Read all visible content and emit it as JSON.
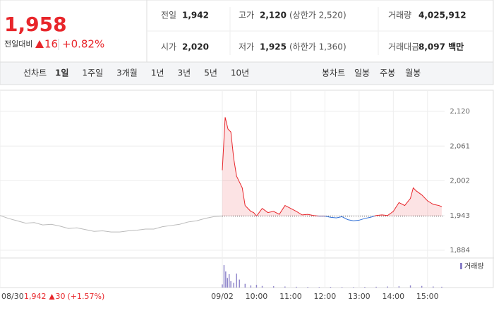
{
  "header": {
    "price": "1,958",
    "change_label": "전일대비",
    "change": "16",
    "change_pct": "+0.82%",
    "stats": [
      [
        {
          "label": "전일",
          "value": "1,942"
        },
        {
          "label": "고가",
          "value": "2,120",
          "note": "(상한가 2,520)"
        },
        {
          "label": "거래량",
          "value": "4,025,912"
        }
      ],
      [
        {
          "label": "시가",
          "value": "2,020"
        },
        {
          "label": "저가",
          "value": "1,925",
          "note": "(하한가 1,360)"
        },
        {
          "label": "거래대금",
          "value": "8,097 백만"
        }
      ]
    ]
  },
  "tabs": {
    "line_label": "선차트",
    "line": [
      "1일",
      "1주일",
      "3개월",
      "1년",
      "3년",
      "5년",
      "10년"
    ],
    "candle_label": "봉차트",
    "candle": [
      "일봉",
      "주봉",
      "월봉"
    ]
  },
  "chart_data": {
    "type": "line",
    "baseline": 1942,
    "color_up": "#e8262b",
    "color_down": "#2f6fd6",
    "grid": true,
    "xlim": [
      0,
      780
    ],
    "ylim": [
      1872,
      2156
    ],
    "xticks": [
      {
        "value": 0,
        "label": "08/30"
      },
      {
        "value": 390,
        "label": "09/02"
      },
      {
        "value": 450,
        "label": "10:00"
      },
      {
        "value": 510,
        "label": "11:00"
      },
      {
        "value": 570,
        "label": "12:00"
      },
      {
        "value": 630,
        "label": "13:00"
      },
      {
        "value": 690,
        "label": "14:00"
      },
      {
        "value": 750,
        "label": "15:00"
      }
    ],
    "yticks": [
      {
        "value": 1884,
        "label": "1,884"
      },
      {
        "value": 1943,
        "label": "1,943"
      },
      {
        "value": 2002,
        "label": "2,002"
      },
      {
        "value": 2061,
        "label": "2,061"
      },
      {
        "value": 2120,
        "label": "2,120"
      }
    ],
    "series": [
      {
        "color": "#bbbbbb",
        "x": [
          0,
          15,
          30,
          45,
          60,
          75,
          90,
          105,
          120,
          135,
          150,
          165,
          180,
          195,
          210,
          225,
          240,
          255,
          270,
          285,
          300,
          315,
          330,
          345,
          360,
          375,
          390
        ],
        "values": [
          1943,
          1938,
          1934,
          1930,
          1931,
          1927,
          1928,
          1925,
          1921,
          1922,
          1919,
          1916,
          1917,
          1915,
          1915,
          1917,
          1918,
          1920,
          1920,
          1924,
          1926,
          1928,
          1932,
          1934,
          1938,
          1941,
          1942
        ]
      },
      {
        "x": [
          390,
          395,
          400,
          405,
          410,
          415,
          420,
          425,
          430,
          435,
          440,
          445,
          450,
          460,
          470,
          480,
          490,
          500,
          510,
          520,
          530,
          540,
          550,
          560,
          570,
          580,
          590,
          600,
          610,
          620,
          630,
          640,
          650,
          660,
          670,
          680,
          690,
          700,
          710,
          720,
          725,
          730,
          740,
          750,
          760,
          770,
          775
        ],
        "values": [
          2020,
          2110,
          2090,
          2085,
          2040,
          2010,
          2000,
          1990,
          1960,
          1955,
          1950,
          1948,
          1942,
          1955,
          1948,
          1950,
          1945,
          1960,
          1955,
          1950,
          1944,
          1945,
          1943,
          1942,
          1942,
          1940,
          1939,
          1941,
          1936,
          1934,
          1935,
          1938,
          1940,
          1943,
          1944,
          1943,
          1950,
          1965,
          1960,
          1972,
          1990,
          1985,
          1978,
          1968,
          1962,
          1960,
          1958
        ]
      }
    ],
    "annotation": {
      "close": "1,942",
      "change": "30",
      "pct": "(+1.57%)"
    },
    "volume": {
      "name": "거래량",
      "color": "#8a80c8",
      "ylim": [
        0,
        500000
      ],
      "x": [
        390,
        393,
        396,
        399,
        402,
        405,
        410,
        415,
        420,
        430,
        440,
        450,
        460,
        480,
        500,
        520,
        540,
        560,
        580,
        600,
        620,
        640,
        660,
        680,
        700,
        720,
        740,
        760,
        775
      ],
      "values": [
        60000,
        420000,
        300000,
        180000,
        250000,
        120000,
        90000,
        260000,
        150000,
        70000,
        40000,
        50000,
        30000,
        25000,
        20000,
        15000,
        12000,
        10000,
        12000,
        10000,
        9000,
        12000,
        15000,
        20000,
        25000,
        40000,
        30000,
        20000,
        15000
      ]
    }
  }
}
